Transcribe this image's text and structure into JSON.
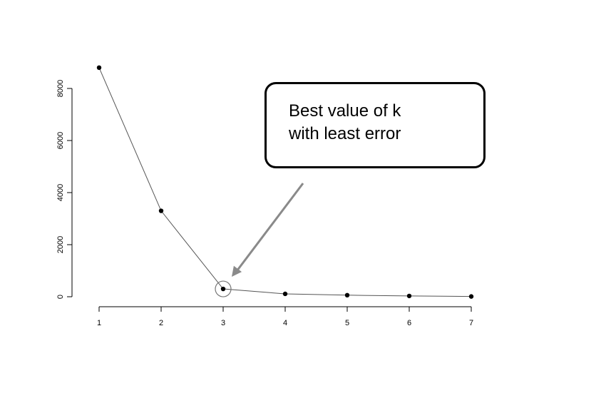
{
  "chart_data": {
    "type": "line",
    "title": "",
    "xlabel": "",
    "ylabel": "",
    "x": [
      1,
      2,
      3,
      4,
      5,
      6,
      7
    ],
    "series": [
      {
        "values": [
          8800,
          3300,
          300,
          110,
          60,
          30,
          10
        ]
      }
    ],
    "xticks": [
      "1",
      "2",
      "3",
      "4",
      "5",
      "6",
      "7"
    ],
    "yticks": [
      "0",
      "2000",
      "4000",
      "6000",
      "8000"
    ],
    "ylim": [
      0,
      8800
    ],
    "xlim": [
      1,
      7
    ],
    "grid": false,
    "highlight": {
      "x": 3,
      "y": 300,
      "marker": "circle"
    },
    "annotation": {
      "text": "Best value of k\nwith least error",
      "points_to": {
        "x": 3,
        "y": 300
      }
    }
  }
}
